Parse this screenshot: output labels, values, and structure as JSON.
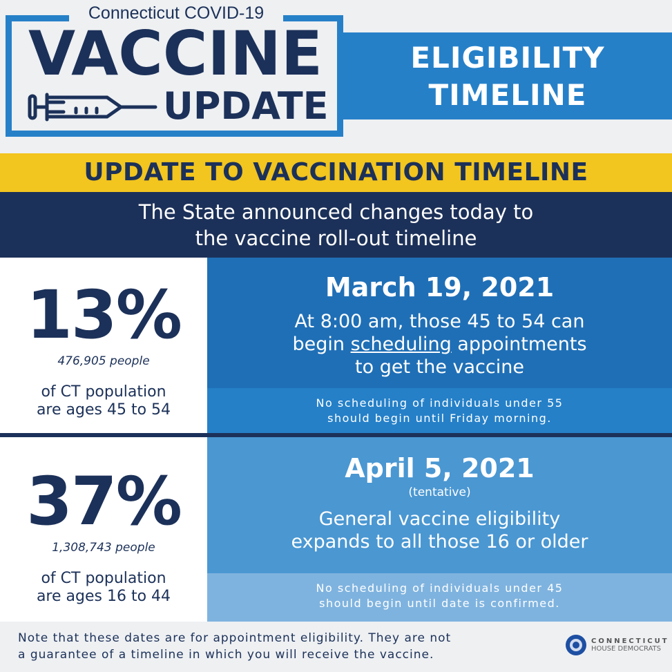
{
  "header": {
    "supertitle": "Connecticut COVID-19",
    "title": "VACCINE",
    "subtitle": "UPDATE",
    "banner_line1": "ELIGIBILITY",
    "banner_line2": "TIMELINE"
  },
  "headline": "UPDATE TO VACCINATION TIMELINE",
  "intro": {
    "line1": "The State announced changes today to",
    "line2": "the vaccine roll-out timeline"
  },
  "rows": [
    {
      "percent": "13%",
      "people": "476,905 people",
      "age_line1": "of CT population",
      "age_line2": "are ages 45 to 54",
      "date": "March 19, 2021",
      "desc_line1": "At 8:00 am, those 45 to 54 can",
      "desc_pre": "begin ",
      "desc_underlined": "scheduling",
      "desc_post": " appointments",
      "desc_line3": "to get the vaccine",
      "note_line1": "No scheduling of individuals under 55",
      "note_line2": "should begin until Friday morning."
    },
    {
      "percent": "37%",
      "people": "1,308,743 people",
      "age_line1": "of CT population",
      "age_line2": "are ages 16 to 44",
      "date": "April 5, 2021",
      "tentative": "(tentative)",
      "desc_line1": "General vaccine eligibility",
      "desc_line2": "expands to all those 16 or older",
      "note_line1": "No scheduling of individuals under 45",
      "note_line2": "should begin until date is confirmed."
    }
  ],
  "footer": {
    "line1": "Note that these dates are for appointment eligibility. They are not",
    "line2": "a guarantee of a timeline in which you will receive the vaccine.",
    "org_line1": "CONNECTICUT",
    "org_line2": "HOUSE DEMOCRATS"
  },
  "colors": {
    "navy": "#1c3159",
    "blue": "#2680c8",
    "yellow": "#f2c51f",
    "row1_top": "#1f6fb6",
    "row1_bottom": "#2580c8",
    "row2_top": "#4a97d2",
    "row2_bottom": "#7fb3df"
  }
}
